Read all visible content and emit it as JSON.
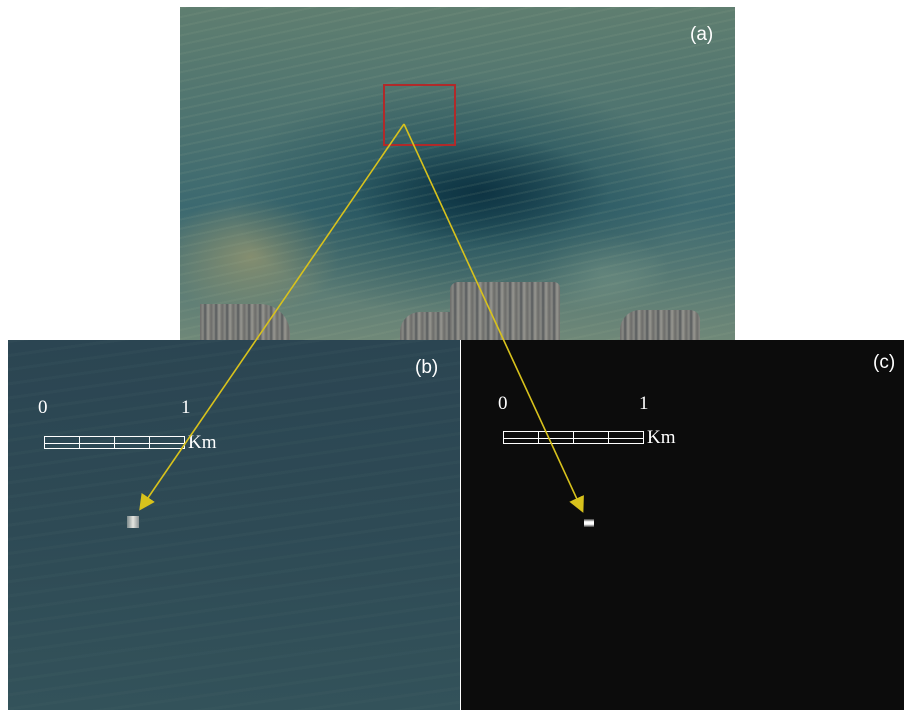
{
  "panels": {
    "a": {
      "label": "(a)"
    },
    "b": {
      "label": "(b)",
      "scale": {
        "start": "0",
        "end": "1",
        "unit": "Km"
      }
    },
    "c": {
      "label": "(c)",
      "scale": {
        "start": "0",
        "end": "1",
        "unit": "Km"
      }
    }
  },
  "colors": {
    "roi_box": "#b02a2a",
    "arrow": "#d8c21c",
    "scale_bar": "#ffffff"
  }
}
